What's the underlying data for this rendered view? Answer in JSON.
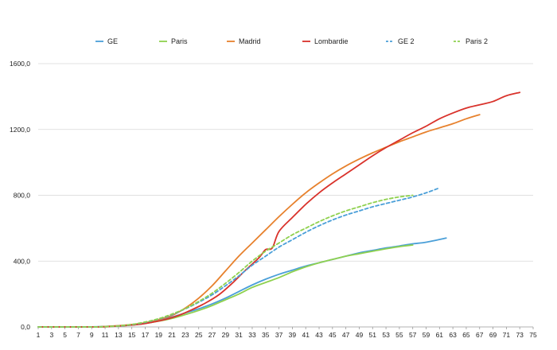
{
  "chart_data": {
    "type": "line",
    "title": "",
    "xlabel": "",
    "ylabel": "",
    "xlim": [
      1,
      75
    ],
    "ylim": [
      0,
      1600
    ],
    "x_ticks": [
      1,
      3,
      5,
      7,
      9,
      11,
      13,
      15,
      17,
      19,
      21,
      23,
      25,
      27,
      29,
      31,
      33,
      35,
      37,
      39,
      41,
      43,
      45,
      47,
      49,
      51,
      53,
      55,
      57,
      59,
      61,
      63,
      65,
      67,
      69,
      71,
      73,
      75
    ],
    "y_ticks": [
      {
        "value": 0,
        "label": "0,0"
      },
      {
        "value": 400,
        "label": "400,0"
      },
      {
        "value": 800,
        "label": "800,0"
      },
      {
        "value": 1200,
        "label": "1200,0"
      },
      {
        "value": 1600,
        "label": "1600,0"
      }
    ],
    "grid": "horizontal",
    "legend_position": "top",
    "series": [
      {
        "name": "GE",
        "color": "#4a9fd8",
        "dash": "solid",
        "points": [
          [
            1,
            0
          ],
          [
            8,
            0
          ],
          [
            10,
            2
          ],
          [
            13,
            6
          ],
          [
            15,
            14
          ],
          [
            17,
            25
          ],
          [
            19,
            40
          ],
          [
            21,
            60
          ],
          [
            23,
            85
          ],
          [
            25,
            110
          ],
          [
            27,
            140
          ],
          [
            29,
            175
          ],
          [
            31,
            215
          ],
          [
            33,
            255
          ],
          [
            35,
            290
          ],
          [
            37,
            320
          ],
          [
            39,
            345
          ],
          [
            41,
            370
          ],
          [
            43,
            390
          ],
          [
            45,
            410
          ],
          [
            47,
            430
          ],
          [
            49,
            450
          ],
          [
            51,
            465
          ],
          [
            53,
            480
          ],
          [
            55,
            492
          ],
          [
            57,
            505
          ],
          [
            59,
            515
          ],
          [
            62,
            540
          ]
        ]
      },
      {
        "name": "Paris",
        "color": "#8fd14f",
        "dash": "solid",
        "points": [
          [
            1,
            0
          ],
          [
            9,
            0
          ],
          [
            11,
            2
          ],
          [
            13,
            6
          ],
          [
            15,
            12
          ],
          [
            17,
            22
          ],
          [
            19,
            35
          ],
          [
            21,
            52
          ],
          [
            23,
            75
          ],
          [
            25,
            100
          ],
          [
            27,
            130
          ],
          [
            29,
            165
          ],
          [
            31,
            200
          ],
          [
            33,
            240
          ],
          [
            35,
            270
          ],
          [
            37,
            300
          ],
          [
            39,
            335
          ],
          [
            41,
            365
          ],
          [
            43,
            390
          ],
          [
            45,
            410
          ],
          [
            47,
            430
          ],
          [
            49,
            445
          ],
          [
            51,
            460
          ],
          [
            53,
            475
          ],
          [
            55,
            488
          ],
          [
            57,
            498
          ]
        ]
      },
      {
        "name": "Madrid",
        "color": "#e7812d",
        "dash": "solid",
        "points": [
          [
            1,
            0
          ],
          [
            9,
            0
          ],
          [
            11,
            3
          ],
          [
            13,
            8
          ],
          [
            15,
            15
          ],
          [
            17,
            25
          ],
          [
            19,
            45
          ],
          [
            21,
            70
          ],
          [
            23,
            115
          ],
          [
            25,
            175
          ],
          [
            27,
            250
          ],
          [
            29,
            340
          ],
          [
            31,
            430
          ],
          [
            33,
            510
          ],
          [
            35,
            590
          ],
          [
            37,
            670
          ],
          [
            39,
            745
          ],
          [
            41,
            815
          ],
          [
            43,
            875
          ],
          [
            45,
            930
          ],
          [
            47,
            978
          ],
          [
            49,
            1020
          ],
          [
            51,
            1058
          ],
          [
            53,
            1092
          ],
          [
            55,
            1125
          ],
          [
            57,
            1155
          ],
          [
            59,
            1185
          ],
          [
            61,
            1210
          ],
          [
            63,
            1235
          ],
          [
            65,
            1265
          ],
          [
            67,
            1290
          ]
        ]
      },
      {
        "name": "Lombardie",
        "color": "#d9322b",
        "dash": "solid",
        "points": [
          [
            1,
            0
          ],
          [
            10,
            0
          ],
          [
            12,
            3
          ],
          [
            14,
            8
          ],
          [
            16,
            15
          ],
          [
            18,
            28
          ],
          [
            20,
            45
          ],
          [
            22,
            70
          ],
          [
            24,
            105
          ],
          [
            26,
            145
          ],
          [
            28,
            195
          ],
          [
            30,
            265
          ],
          [
            32,
            345
          ],
          [
            34,
            420
          ],
          [
            35,
            470
          ],
          [
            36,
            480
          ],
          [
            37,
            580
          ],
          [
            39,
            665
          ],
          [
            41,
            745
          ],
          [
            43,
            815
          ],
          [
            45,
            875
          ],
          [
            47,
            930
          ],
          [
            49,
            985
          ],
          [
            51,
            1040
          ],
          [
            53,
            1090
          ],
          [
            55,
            1135
          ],
          [
            57,
            1180
          ],
          [
            59,
            1220
          ],
          [
            61,
            1265
          ],
          [
            63,
            1300
          ],
          [
            65,
            1330
          ],
          [
            67,
            1350
          ],
          [
            69,
            1370
          ],
          [
            71,
            1405
          ],
          [
            73,
            1425
          ]
        ]
      },
      {
        "name": "GE 2",
        "color": "#4a9fd8",
        "dash": "dashed",
        "points": [
          [
            1,
            0
          ],
          [
            9,
            0
          ],
          [
            11,
            2
          ],
          [
            13,
            6
          ],
          [
            15,
            14
          ],
          [
            17,
            28
          ],
          [
            19,
            48
          ],
          [
            21,
            75
          ],
          [
            23,
            110
          ],
          [
            25,
            150
          ],
          [
            27,
            195
          ],
          [
            29,
            250
          ],
          [
            31,
            310
          ],
          [
            33,
            375
          ],
          [
            35,
            430
          ],
          [
            37,
            485
          ],
          [
            39,
            530
          ],
          [
            41,
            575
          ],
          [
            43,
            615
          ],
          [
            45,
            650
          ],
          [
            47,
            680
          ],
          [
            49,
            705
          ],
          [
            51,
            730
          ],
          [
            53,
            750
          ],
          [
            55,
            770
          ],
          [
            57,
            790
          ],
          [
            59,
            815
          ],
          [
            61,
            845
          ]
        ]
      },
      {
        "name": "Paris 2",
        "color": "#8fd14f",
        "dash": "dashed",
        "points": [
          [
            1,
            0
          ],
          [
            9,
            0
          ],
          [
            11,
            2
          ],
          [
            13,
            6
          ],
          [
            15,
            15
          ],
          [
            17,
            30
          ],
          [
            19,
            50
          ],
          [
            21,
            78
          ],
          [
            23,
            112
          ],
          [
            25,
            155
          ],
          [
            27,
            205
          ],
          [
            29,
            265
          ],
          [
            31,
            330
          ],
          [
            33,
            400
          ],
          [
            35,
            460
          ],
          [
            37,
            510
          ],
          [
            39,
            560
          ],
          [
            41,
            600
          ],
          [
            43,
            640
          ],
          [
            45,
            675
          ],
          [
            47,
            705
          ],
          [
            49,
            730
          ],
          [
            51,
            755
          ],
          [
            53,
            775
          ],
          [
            55,
            790
          ],
          [
            57,
            800
          ]
        ]
      }
    ]
  }
}
